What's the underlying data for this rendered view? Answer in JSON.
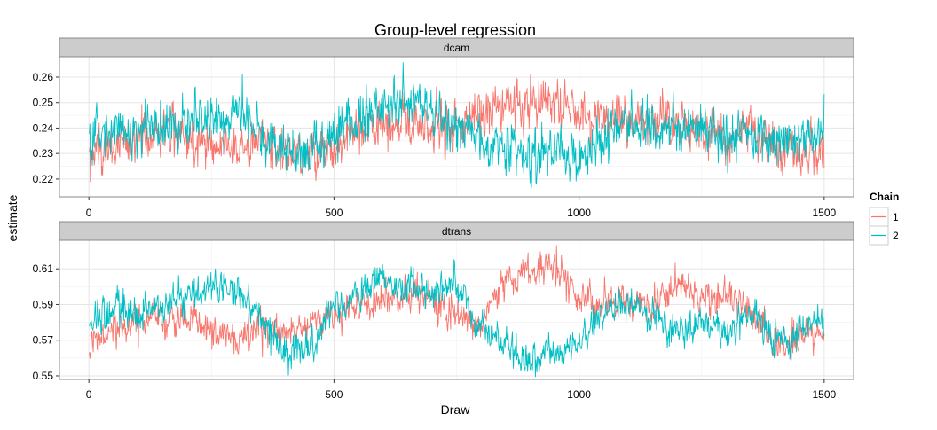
{
  "chart_data": {
    "type": "line",
    "title": "Group-level regression",
    "xlabel": "Draw",
    "ylabel": "estimate",
    "xlim": [
      -60,
      1560
    ],
    "x_ticks": [
      0,
      500,
      1000,
      1500
    ],
    "grid": true,
    "legend": {
      "title": "Chain",
      "placement": "right",
      "entries": [
        {
          "label": "1",
          "color": "#F8766D"
        },
        {
          "label": "2",
          "color": "#00BFC4"
        }
      ]
    },
    "n_draws": 1500,
    "panels": [
      {
        "name": "dcam",
        "ylim": [
          0.213,
          0.268
        ],
        "y_ticks": [
          0.22,
          0.23,
          0.24,
          0.25,
          0.26
        ],
        "y_tick_labels": [
          "0.22",
          "0.23",
          "0.24",
          "0.25",
          "0.26"
        ],
        "series": [
          {
            "name": "1",
            "color": "#F8766D",
            "noise": 0.0045,
            "x": [
              0,
              50,
              100,
              150,
              200,
              250,
              300,
              350,
              400,
              450,
              500,
              550,
              600,
              650,
              700,
              750,
              800,
              850,
              900,
              950,
              1000,
              1050,
              1100,
              1150,
              1200,
              1250,
              1300,
              1350,
              1400,
              1450,
              1500
            ],
            "y": [
              0.229,
              0.232,
              0.236,
              0.239,
              0.238,
              0.234,
              0.232,
              0.236,
              0.231,
              0.231,
              0.232,
              0.238,
              0.241,
              0.242,
              0.24,
              0.242,
              0.245,
              0.249,
              0.251,
              0.252,
              0.245,
              0.243,
              0.241,
              0.243,
              0.243,
              0.238,
              0.236,
              0.24,
              0.232,
              0.228,
              0.234
            ]
          },
          {
            "name": "2",
            "color": "#00BFC4",
            "noise": 0.0045,
            "x": [
              0,
              50,
              100,
              150,
              200,
              250,
              300,
              350,
              400,
              450,
              500,
              550,
              600,
              650,
              700,
              750,
              800,
              850,
              900,
              950,
              1000,
              1050,
              1100,
              1150,
              1200,
              1250,
              1300,
              1350,
              1400,
              1450,
              1500
            ],
            "y": [
              0.237,
              0.238,
              0.24,
              0.242,
              0.24,
              0.244,
              0.248,
              0.238,
              0.232,
              0.23,
              0.239,
              0.242,
              0.249,
              0.25,
              0.246,
              0.24,
              0.234,
              0.231,
              0.23,
              0.233,
              0.229,
              0.237,
              0.243,
              0.24,
              0.24,
              0.242,
              0.237,
              0.238,
              0.236,
              0.236,
              0.239
            ]
          }
        ]
      },
      {
        "name": "dtrans",
        "ylim": [
          0.548,
          0.626
        ],
        "y_ticks": [
          0.55,
          0.57,
          0.59,
          0.61
        ],
        "y_tick_labels": [
          "0.55",
          "0.57",
          "0.59",
          "0.61"
        ],
        "series": [
          {
            "name": "1",
            "color": "#F8766D",
            "noise": 0.0045,
            "x": [
              0,
              50,
              100,
              150,
              200,
              250,
              300,
              350,
              400,
              450,
              500,
              550,
              600,
              650,
              700,
              750,
              800,
              850,
              900,
              950,
              1000,
              1050,
              1100,
              1150,
              1200,
              1250,
              1300,
              1350,
              1400,
              1450,
              1500
            ],
            "y": [
              0.565,
              0.575,
              0.578,
              0.58,
              0.584,
              0.575,
              0.568,
              0.577,
              0.576,
              0.58,
              0.584,
              0.59,
              0.593,
              0.595,
              0.592,
              0.585,
              0.578,
              0.603,
              0.606,
              0.614,
              0.593,
              0.591,
              0.592,
              0.59,
              0.6,
              0.594,
              0.594,
              0.588,
              0.566,
              0.572,
              0.574
            ]
          },
          {
            "name": "2",
            "color": "#00BFC4",
            "noise": 0.0045,
            "x": [
              0,
              50,
              100,
              150,
              200,
              250,
              300,
              350,
              400,
              450,
              500,
              550,
              600,
              650,
              700,
              750,
              800,
              850,
              900,
              950,
              1000,
              1050,
              1100,
              1150,
              1200,
              1250,
              1300,
              1350,
              1400,
              1450,
              1500
            ],
            "y": [
              0.578,
              0.588,
              0.585,
              0.59,
              0.593,
              0.6,
              0.598,
              0.582,
              0.562,
              0.565,
              0.588,
              0.596,
              0.604,
              0.6,
              0.598,
              0.6,
              0.578,
              0.566,
              0.56,
              0.562,
              0.568,
              0.588,
              0.59,
              0.585,
              0.573,
              0.58,
              0.576,
              0.584,
              0.57,
              0.575,
              0.58
            ]
          }
        ]
      }
    ]
  }
}
